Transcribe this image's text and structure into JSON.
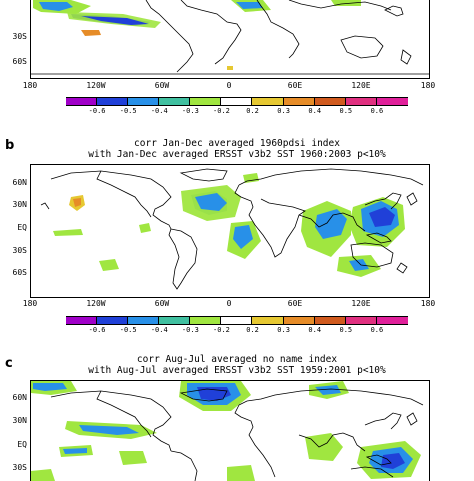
{
  "colorbar": {
    "labels": [
      "-0.6",
      "-0.5",
      "-0.4",
      "-0.3",
      "-0.2",
      "0.2",
      "0.3",
      "0.4",
      "0.5",
      "0.6"
    ],
    "colors": [
      "#a000c8",
      "#2040d8",
      "#2890e8",
      "#40c0a0",
      "#a0e640",
      "#ffffff",
      "#e6c832",
      "#e68c28",
      "#d05a1e",
      "#e03080",
      "#e0209a"
    ]
  },
  "panels": [
    {
      "id": "a",
      "letter": "",
      "title_line1": "",
      "title_line2": "",
      "lat_labels": [
        "30S",
        "60S"
      ],
      "lon_labels": [
        "180",
        "120W",
        "60W",
        "0",
        "60E",
        "120E",
        "180"
      ]
    },
    {
      "id": "b",
      "letter": "b",
      "title_line1": "corr Jan-Dec averaged 1960pdsi index",
      "title_line2": "with Jan-Dec averaged ERSST v3b2 SST 1960:2003 p<10%",
      "lat_labels": [
        "60N",
        "30N",
        "EQ",
        "30S",
        "60S"
      ],
      "lon_labels": [
        "180",
        "120W",
        "60W",
        "0",
        "60E",
        "120E",
        "180"
      ]
    },
    {
      "id": "c",
      "letter": "c",
      "title_line1": "corr Aug-Jul averaged no name index",
      "title_line2": "with Aug-Jul averaged ERSST v3b2 SST 1959:2001 p<10%",
      "lat_labels": [
        "60N",
        "30N",
        "EQ",
        "30S"
      ],
      "lon_labels": []
    }
  ]
}
